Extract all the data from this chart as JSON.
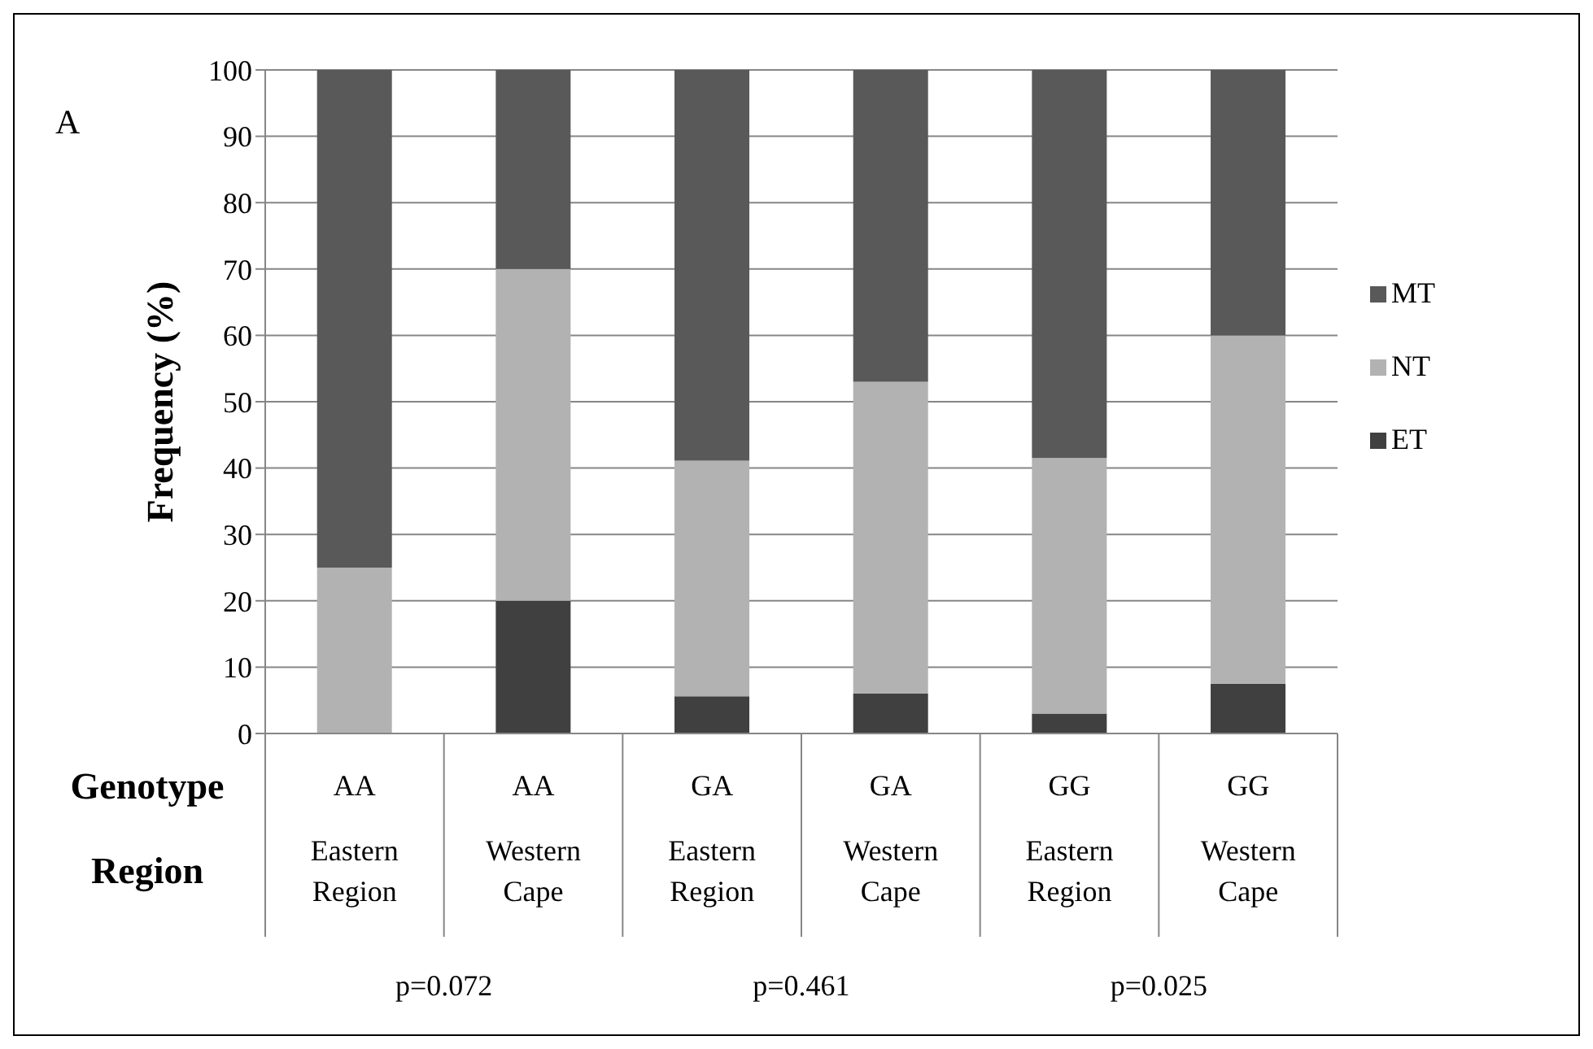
{
  "chart_data": {
    "type": "bar",
    "stacked": true,
    "ylabel": "Frequency (%)",
    "categories": [
      "AA\nEastern Region",
      "AA\nWestern Cape",
      "GA\nEastern Region",
      "GA\nWestern Cape",
      "GG\nEastern Region",
      "GG\nWestern Cape"
    ],
    "series": [
      {
        "name": "ET",
        "color": "#404040",
        "values": [
          0,
          20,
          5.6,
          6,
          3,
          7.5
        ]
      },
      {
        "name": "NT",
        "color": "#b2b2b2",
        "values": [
          25,
          50,
          35.5,
          47,
          38.5,
          52.5
        ]
      },
      {
        "name": "MT",
        "color": "#595959",
        "values": [
          75,
          30,
          58.9,
          47,
          58.5,
          40
        ]
      }
    ],
    "ylim": [
      0,
      100
    ],
    "yticks": [
      0,
      10,
      20,
      30,
      40,
      50,
      60,
      70,
      80,
      90,
      100
    ],
    "grid": "y",
    "legend": "right",
    "annotations": [
      "A",
      "Genotype",
      "Region",
      "p=0.072",
      "p=0.461",
      "p=0.025"
    ]
  }
}
